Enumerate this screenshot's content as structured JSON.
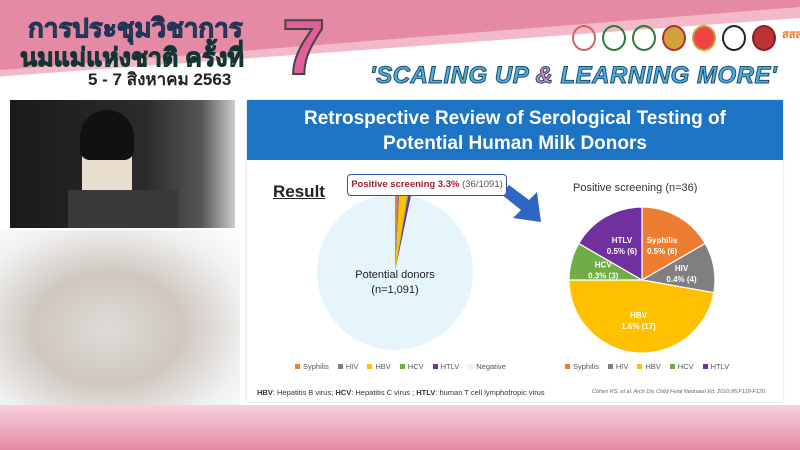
{
  "banner": {
    "line1": "การประชุมวิชาการ",
    "line2": "นมแม่แห่งชาติ ครั้งที่",
    "number": "7",
    "date": "5 - 7 สิงหาคม 2563",
    "slogan_a": "'SCALING UP ",
    "slogan_amp": "&",
    "slogan_b": " LEARNING MORE'",
    "logos": [
      "logo-1",
      "logo-2",
      "logo-3",
      "logo-4",
      "logo-5",
      "logo-6",
      "logo-7",
      "logo-8"
    ]
  },
  "slide": {
    "title_line1": "Retrospective Review of Serological Testing of",
    "title_line2": "Potential Human Milk Donors",
    "result": "Result",
    "callout_bold": "Positive screening 3.3%",
    "callout_rest": " (36/1091)",
    "center_line1": "Potential donors",
    "center_line2": "(n=1,091)",
    "footnote": [
      {
        "abbr": "HBV",
        "def": ": Hepatitis B virus; "
      },
      {
        "abbr": "HCV",
        "def": ": Hepatitis C virus ; "
      },
      {
        "abbr": "HTLV",
        "def": ": human T cell lymphotropic virus"
      }
    ],
    "citation": "Cohen RS, et al. Arch Dis Child Fetal Neonatal Ed. 2010;95:F118-F120."
  },
  "chart_data": [
    {
      "type": "pie",
      "title": "",
      "center_label": "Potential donors (n=1,091)",
      "categories": [
        "Syphilis",
        "HIV",
        "HBV",
        "HCV",
        "HTLV",
        "Negative"
      ],
      "values": [
        6,
        4,
        17,
        3,
        6,
        1055
      ],
      "colors": [
        "#ed7d31",
        "#7f7f7f",
        "#ffc000",
        "#70ad47",
        "#7030a0",
        "#e5f5fb"
      ],
      "legend": "bottom"
    },
    {
      "type": "pie",
      "title": "Positive screening (n=36)",
      "categories": [
        "Syphilis",
        "HIV",
        "HBV",
        "HCV",
        "HTLV"
      ],
      "values": [
        6,
        4,
        17,
        3,
        6
      ],
      "data_labels": [
        "0.5% (6)",
        "0.4% (4)",
        "1.6% (17)",
        "0.3% (3)",
        "0.5% (6)"
      ],
      "colors": [
        "#ed7d31",
        "#7f7f7f",
        "#ffc000",
        "#70ad47",
        "#7030a0"
      ],
      "legend": "bottom"
    }
  ]
}
